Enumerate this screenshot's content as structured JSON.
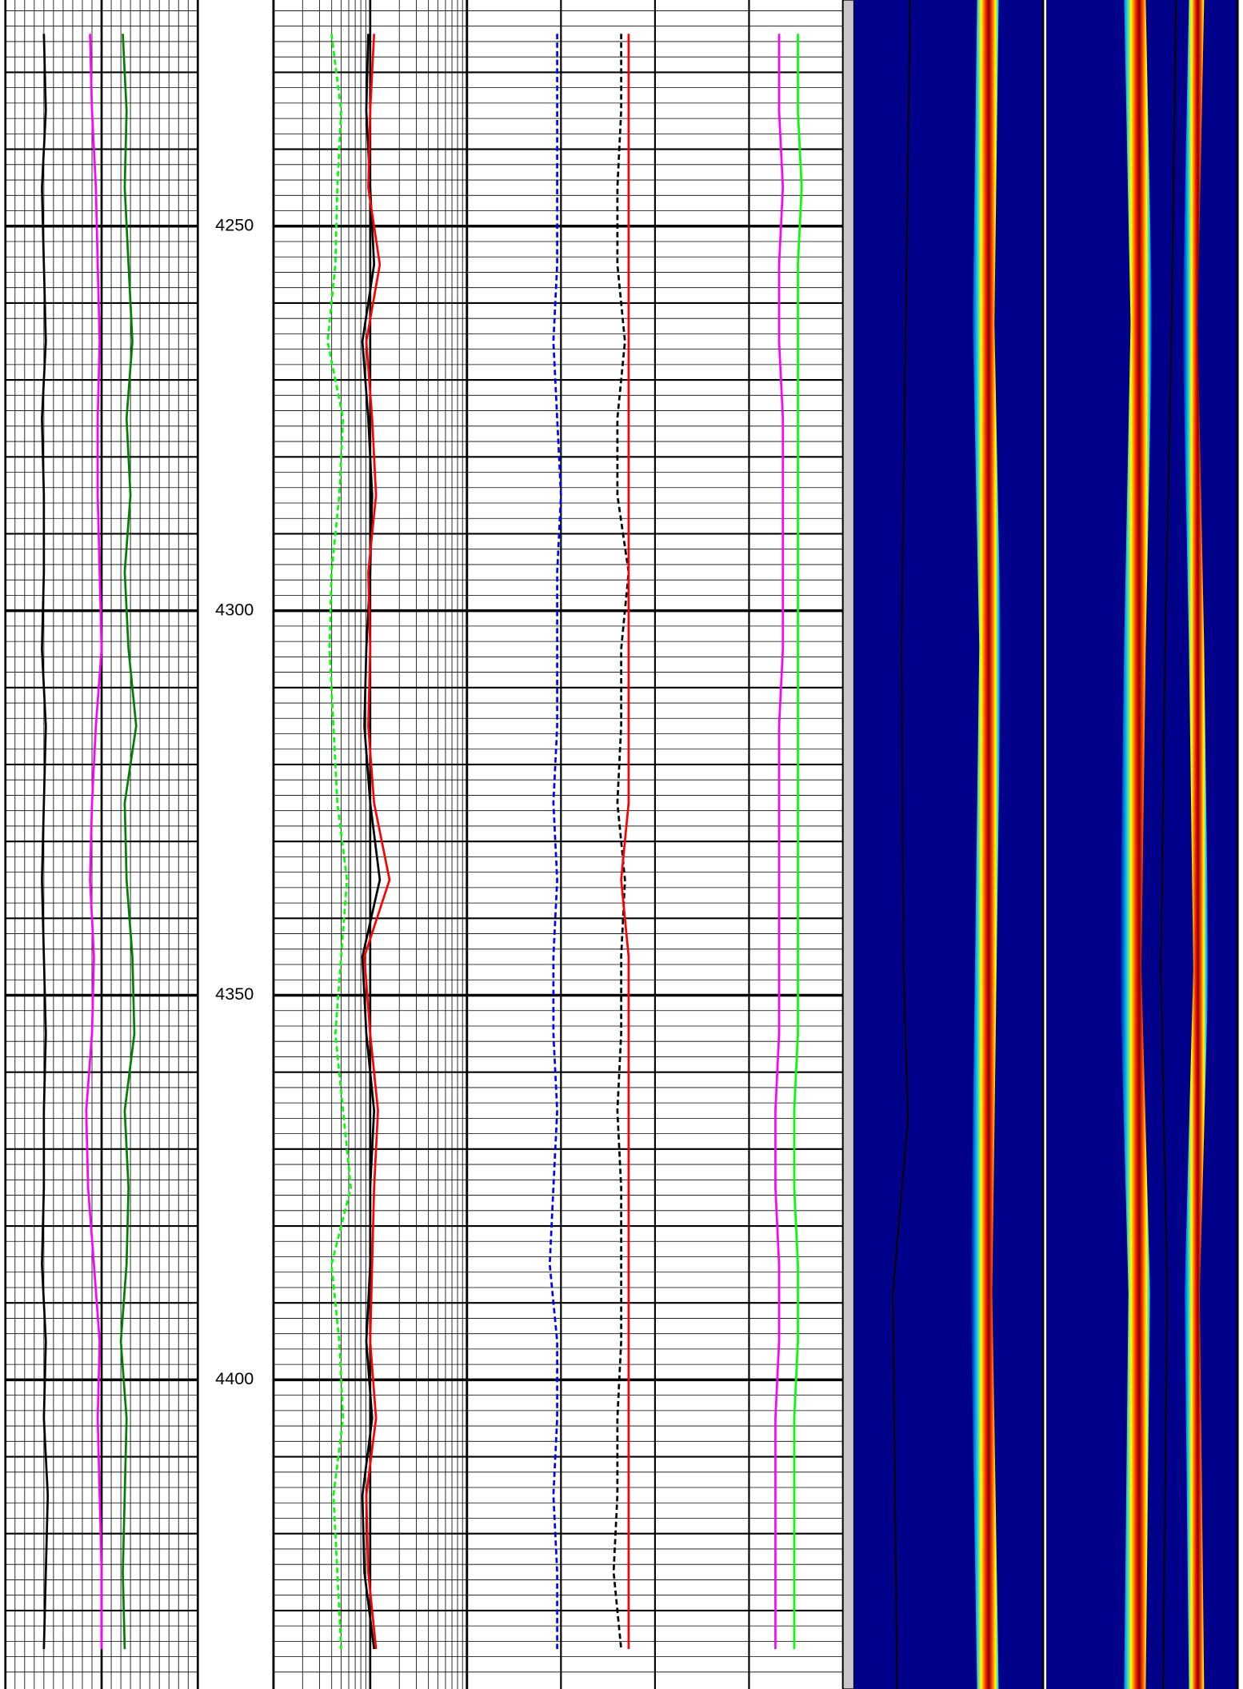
{
  "chart_data": {
    "type": "well-log",
    "ylim": [
      4220.6,
      4440.2
    ],
    "yticks": [
      4250,
      4300,
      4350,
      4400
    ],
    "ygrid": [
      4230,
      4240,
      4250,
      4260,
      4270,
      4280,
      4290,
      4300,
      4310,
      4320,
      4330,
      4340,
      4350,
      4360,
      4370,
      4380,
      4390,
      4400,
      4410,
      4420,
      4430
    ],
    "depth": [
      4225,
      4235,
      4245,
      4255,
      4265,
      4275,
      4285,
      4295,
      4305,
      4315,
      4325,
      4335,
      4345,
      4355,
      4365,
      4375,
      4385,
      4395,
      4405,
      4415,
      4425,
      4435
    ],
    "tracks": [
      {
        "scale": "linear",
        "xlim": [
          0,
          100
        ],
        "series": [
          {
            "color": "#000000",
            "values": [
              20,
              21,
              19,
              20,
              21,
              19,
              20,
              20,
              19,
              21,
              20,
              19,
              20,
              21,
              20,
              20,
              19,
              21,
              20,
              22,
              21,
              20
            ]
          },
          {
            "color": "#ff00ff",
            "values": [
              44,
              45,
              47,
              48,
              49,
              48,
              48,
              49,
              50,
              47,
              45,
              44,
              46,
              45,
              42,
              43,
              46,
              49,
              48,
              49,
              50,
              50
            ]
          },
          {
            "color": "#008000",
            "values": [
              61,
              63,
              62,
              64,
              66,
              63,
              65,
              62,
              64,
              68,
              62,
              63,
              66,
              67,
              62,
              64,
              63,
              60,
              63,
              62,
              61,
              62
            ]
          }
        ]
      },
      {
        "scale": "log",
        "xlim": [
          0,
          100
        ],
        "series": [
          {
            "color": "#00ff00",
            "dash": true,
            "values": [
              30,
              35,
              33,
              32,
              28,
              36,
              34,
              30,
              29,
              31,
              33,
              38,
              35,
              32,
              36,
              40,
              30,
              34,
              36,
              31,
              33,
              35
            ]
          },
          {
            "color": "#000000",
            "values": [
              49,
              48,
              50,
              52,
              46,
              49,
              51,
              50,
              48,
              47,
              50,
              55,
              46,
              48,
              52,
              50,
              50,
              48,
              51,
              46,
              47,
              52
            ]
          },
          {
            "color": "#ff0000",
            "values": [
              52,
              50,
              49,
              55,
              48,
              51,
              53,
              49,
              50,
              49,
              52,
              60,
              47,
              50,
              54,
              52,
              51,
              50,
              53,
              48,
              49,
              53
            ]
          }
        ]
      },
      {
        "scale": "linear",
        "xlim": [
          0,
          100
        ],
        "series": [
          {
            "color": "#0000ff",
            "dash": true,
            "values": [
              24,
              24,
              24,
              24,
              23,
              24,
              25,
              24,
              24,
              24,
              23,
              24,
              23,
              23,
              24,
              23,
              22,
              24,
              24,
              23,
              24,
              24
            ]
          },
          {
            "color": "#000000",
            "dash": true,
            "values": [
              41,
              41,
              40,
              40,
              42,
              40,
              40,
              43,
              41,
              41,
              40,
              42,
              41,
              41,
              40,
              41,
              41,
              41,
              40,
              40,
              39,
              41
            ]
          },
          {
            "color": "#ff0000",
            "values": [
              43,
              43,
              43,
              43,
              43,
              43,
              43,
              43,
              43,
              43,
              43,
              41,
              43,
              43,
              43,
              43,
              43,
              43,
              43,
              43,
              43,
              43
            ]
          },
          {
            "color": "#ff00ff",
            "values": [
              83,
              83,
              84,
              83,
              83,
              84,
              84,
              84,
              84,
              83,
              83,
              83,
              83,
              83,
              82,
              82,
              83,
              83,
              82,
              82,
              82,
              82
            ]
          },
          {
            "color": "#00ff00",
            "values": [
              88,
              88,
              89,
              88,
              88,
              88,
              88,
              88,
              88,
              88,
              88,
              88,
              88,
              88,
              87,
              87,
              88,
              88,
              87,
              87,
              87,
              87
            ]
          }
        ]
      }
    ]
  }
}
